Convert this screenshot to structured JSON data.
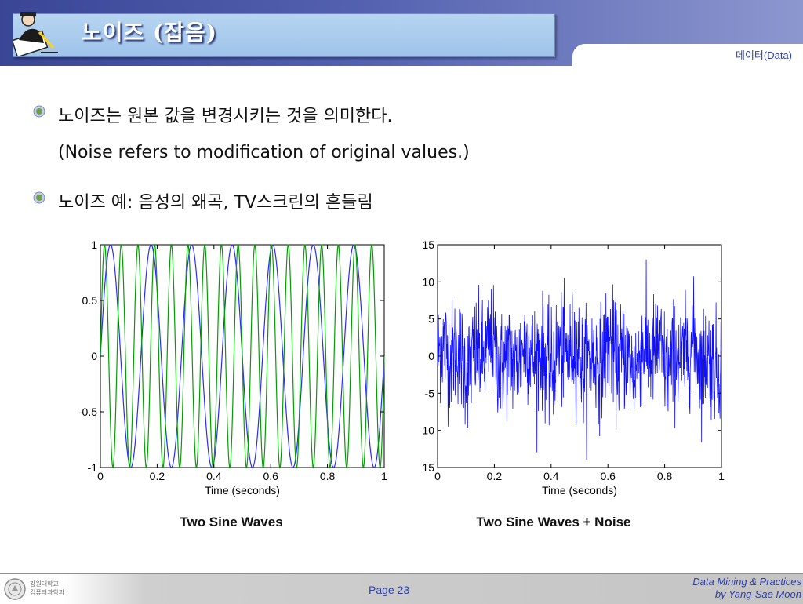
{
  "header": {
    "title": "노이즈 (잡음)",
    "tab_label": "데이터(Data)"
  },
  "bullets": [
    {
      "text": "노이즈는 원본 값을 변경시키는 것을 의미한다.",
      "subtext": "(Noise refers to modification of original values.)"
    },
    {
      "text": "노이즈 예: 음성의 왜곡, TV스크린의 흔들림"
    }
  ],
  "chart_data": [
    {
      "type": "line",
      "title": "Two Sine Waves",
      "xlabel": "Time (seconds)",
      "ylabel": "",
      "xlim": [
        0,
        1
      ],
      "ylim": [
        -1,
        1
      ],
      "x_ticks": [
        "0",
        "0.2",
        "0.4",
        "0.6",
        "0.8",
        "1"
      ],
      "y_ticks": [
        "1",
        "0.5",
        "0",
        "-0.5",
        "-1"
      ],
      "series": [
        {
          "frequency_hz": 7,
          "color": "#2b2bff"
        },
        {
          "frequency_hz": 17,
          "color": "#00a000"
        }
      ]
    },
    {
      "type": "line",
      "title": "Two Sine Waves + Noise",
      "xlabel": "Time (seconds)",
      "ylabel": "",
      "xlim": [
        0,
        1
      ],
      "ylim": [
        -15,
        15
      ],
      "x_ticks": [
        "0",
        "0.2",
        "0.4",
        "0.6",
        "0.8",
        "1"
      ],
      "y_ticks": [
        "15",
        "10",
        "5",
        "0",
        "-5",
        "10",
        "15"
      ],
      "series": [
        {
          "color": "#1010ff",
          "noise_amplitude": 6
        }
      ]
    }
  ],
  "footer": {
    "page": "Page 23",
    "credit_line1": "Data Mining & Practices",
    "credit_line2": "by Yang-Sae Moon",
    "uni_line1": "강원대학교",
    "uni_line2": "컴퓨터과학과"
  },
  "colors": {
    "accent": "#2c3fb0",
    "header": "#3a4596"
  }
}
